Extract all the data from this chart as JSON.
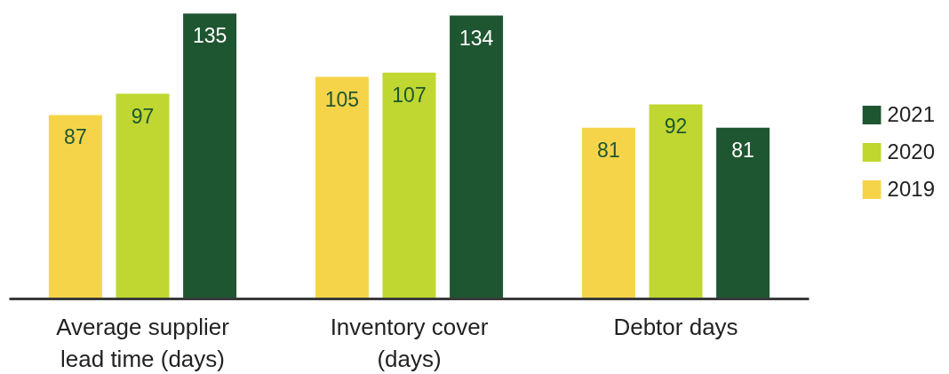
{
  "chart_data": {
    "type": "bar",
    "categories": [
      "Average supplier lead time (days)",
      "Inventory cover (days)",
      "Debtor days"
    ],
    "series": [
      {
        "name": "2019",
        "color": "#f6d44a",
        "values": [
          87,
          105,
          81
        ]
      },
      {
        "name": "2020",
        "color": "#bfd730",
        "values": [
          97,
          107,
          92
        ]
      },
      {
        "name": "2021",
        "color": "#1e5631",
        "values": [
          135,
          134,
          81
        ]
      }
    ],
    "data_labels": true,
    "legend": "right",
    "grid": false
  }
}
